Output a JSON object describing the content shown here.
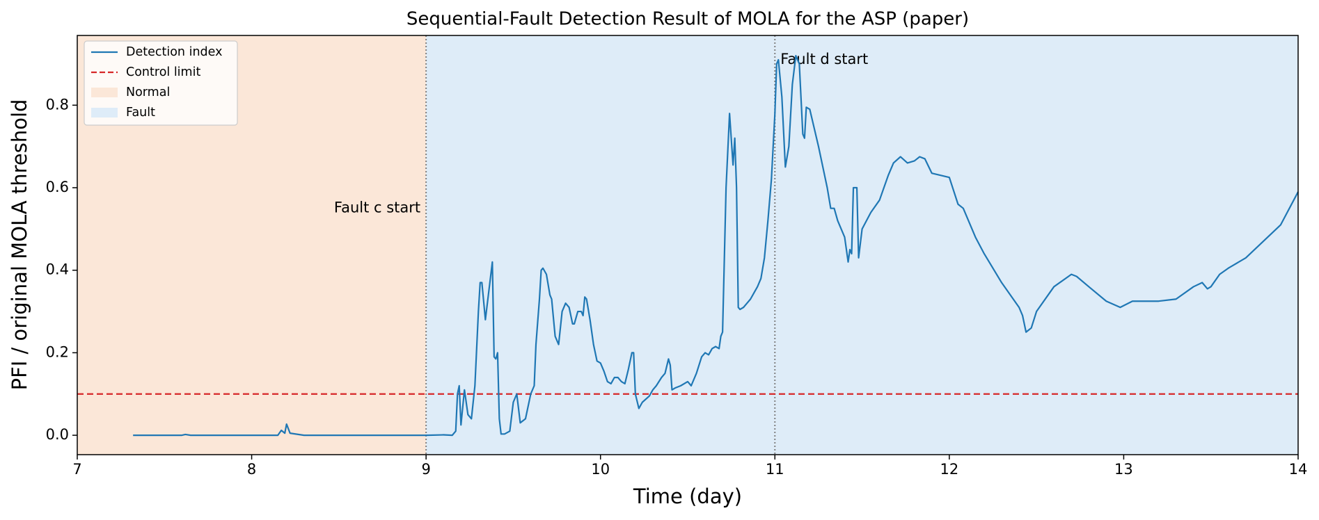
{
  "chart_data": {
    "type": "line",
    "title": "Sequential-Fault Detection Result of MOLA for the ASP (paper)",
    "xlabel": "Time (day)",
    "ylabel": "PFI / original MOLA threshold",
    "xlim": [
      7,
      14
    ],
    "ylim": [
      -0.047,
      0.969
    ],
    "xticks": [
      7,
      8,
      9,
      10,
      11,
      12,
      13,
      14
    ],
    "yticks": [
      {
        "value": 0,
        "label": "0.0"
      },
      0.2,
      0.4,
      0.6,
      0.8
    ],
    "legend": "upper left",
    "x": [
      7.32,
      7.6,
      7.62,
      7.65,
      8.15,
      8.17,
      8.19,
      8.2,
      8.22,
      8.3,
      9.0,
      9.1,
      9.15,
      9.17,
      9.18,
      9.19,
      9.2,
      9.22,
      9.24,
      9.26,
      9.28,
      9.3,
      9.31,
      9.32,
      9.34,
      9.36,
      9.38,
      9.39,
      9.4,
      9.41,
      9.42,
      9.43,
      9.45,
      9.48,
      9.5,
      9.52,
      9.54,
      9.57,
      9.6,
      9.62,
      9.63,
      9.65,
      9.66,
      9.67,
      9.69,
      9.71,
      9.72,
      9.74,
      9.76,
      9.78,
      9.8,
      9.82,
      9.84,
      9.85,
      9.87,
      9.89,
      9.9,
      9.91,
      9.92,
      9.94,
      9.96,
      9.98,
      10.0,
      10.02,
      10.04,
      10.06,
      10.08,
      10.1,
      10.12,
      10.14,
      10.16,
      10.18,
      10.19,
      10.2,
      10.22,
      10.24,
      10.28,
      10.3,
      10.32,
      10.35,
      10.37,
      10.39,
      10.4,
      10.41,
      10.43,
      10.46,
      10.5,
      10.52,
      10.55,
      10.58,
      10.6,
      10.62,
      10.64,
      10.66,
      10.68,
      10.69,
      10.7,
      10.72,
      10.74,
      10.76,
      10.77,
      10.78,
      10.79,
      10.8,
      10.82,
      10.84,
      10.86,
      10.88,
      10.9,
      10.92,
      10.94,
      10.96,
      10.98,
      11.0,
      11.01,
      11.02,
      11.04,
      11.06,
      11.08,
      11.1,
      11.12,
      11.14,
      11.16,
      11.17,
      11.18,
      11.2,
      11.25,
      11.3,
      11.32,
      11.34,
      11.36,
      11.38,
      11.4,
      11.42,
      11.43,
      11.44,
      11.45,
      11.47,
      11.48,
      11.5,
      11.55,
      11.6,
      11.65,
      11.68,
      11.72,
      11.76,
      11.8,
      11.83,
      11.86,
      11.9,
      11.95,
      12.0,
      12.05,
      12.08,
      12.15,
      12.2,
      12.3,
      12.4,
      12.42,
      12.44,
      12.47,
      12.5,
      12.6,
      12.7,
      12.73,
      12.8,
      12.9,
      12.98,
      13.05,
      13.1,
      13.2,
      13.3,
      13.4,
      13.45,
      13.48,
      13.5,
      13.55,
      13.6,
      13.7,
      13.8,
      13.9,
      14.0
    ],
    "series": [
      {
        "name": "Detection index",
        "color": "#1f77b4",
        "values": [
          0,
          0,
          0.002,
          0,
          0,
          0.012,
          0.005,
          0.027,
          0.005,
          0,
          0,
          0.001,
          0,
          0.01,
          0.1,
          0.12,
          0.025,
          0.11,
          0.05,
          0.04,
          0.12,
          0.3,
          0.37,
          0.37,
          0.28,
          0.35,
          0.42,
          0.19,
          0.185,
          0.2,
          0.04,
          0.003,
          0.003,
          0.01,
          0.08,
          0.1,
          0.03,
          0.04,
          0.1,
          0.12,
          0.22,
          0.33,
          0.4,
          0.405,
          0.39,
          0.34,
          0.33,
          0.24,
          0.22,
          0.3,
          0.32,
          0.31,
          0.27,
          0.27,
          0.3,
          0.3,
          0.29,
          0.335,
          0.33,
          0.28,
          0.22,
          0.18,
          0.175,
          0.155,
          0.13,
          0.125,
          0.14,
          0.14,
          0.13,
          0.125,
          0.16,
          0.2,
          0.2,
          0.1,
          0.065,
          0.08,
          0.095,
          0.11,
          0.12,
          0.14,
          0.15,
          0.185,
          0.17,
          0.11,
          0.115,
          0.12,
          0.13,
          0.12,
          0.15,
          0.19,
          0.2,
          0.195,
          0.21,
          0.215,
          0.21,
          0.24,
          0.25,
          0.6,
          0.78,
          0.655,
          0.72,
          0.6,
          0.31,
          0.305,
          0.31,
          0.32,
          0.33,
          0.345,
          0.36,
          0.38,
          0.43,
          0.52,
          0.62,
          0.78,
          0.9,
          0.91,
          0.82,
          0.65,
          0.7,
          0.85,
          0.92,
          0.9,
          0.73,
          0.72,
          0.795,
          0.79,
          0.7,
          0.6,
          0.55,
          0.55,
          0.52,
          0.5,
          0.48,
          0.42,
          0.45,
          0.44,
          0.6,
          0.6,
          0.43,
          0.5,
          0.54,
          0.57,
          0.63,
          0.66,
          0.675,
          0.66,
          0.665,
          0.675,
          0.67,
          0.635,
          0.63,
          0.625,
          0.56,
          0.55,
          0.48,
          0.44,
          0.37,
          0.31,
          0.29,
          0.25,
          0.26,
          0.3,
          0.36,
          0.39,
          0.385,
          0.36,
          0.325,
          0.31,
          0.325,
          0.325,
          0.325,
          0.33,
          0.36,
          0.37,
          0.355,
          0.36,
          0.39,
          0.405,
          0.43,
          0.47,
          0.51,
          0.59
        ]
      }
    ],
    "control_limit": {
      "name": "Control limit",
      "value": 0.1,
      "color": "#d62728"
    },
    "regions": [
      {
        "name": "Normal",
        "start": 7,
        "end": 9,
        "color": "#fbe7d8"
      },
      {
        "name": "Fault",
        "start": 9,
        "end": 14,
        "color": "#deecf8"
      }
    ],
    "events": [
      {
        "x": 9,
        "label": "Fault c start"
      },
      {
        "x": 11,
        "label": "Fault d start"
      }
    ]
  }
}
